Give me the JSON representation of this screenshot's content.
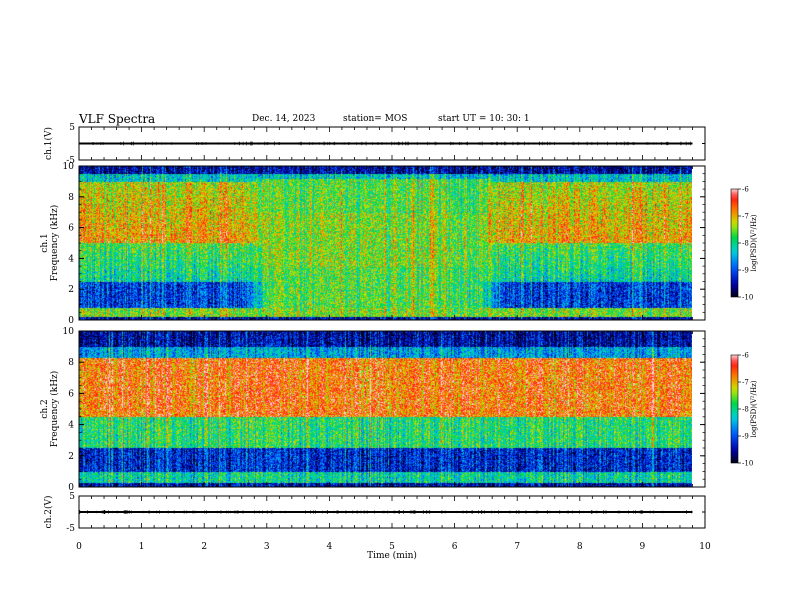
{
  "header": {
    "title": "VLF Spectra",
    "date": "Dec. 14, 2023",
    "station": "station= MOS",
    "start": "start  UT =   10: 30: 1"
  },
  "chart_data": [
    {
      "type": "line",
      "name": "ch1_waveform",
      "ylabel": "ch.1(V)",
      "ylim": [
        -5,
        5
      ],
      "yticks": [
        "5",
        "-5"
      ],
      "x": [
        0,
        9.8
      ],
      "values": [
        0,
        0
      ]
    },
    {
      "type": "heatmap",
      "name": "ch1_spectrogram",
      "ylabel_lines": [
        "ch.1",
        "Frequency (kHz)"
      ],
      "ylim": [
        0,
        10
      ],
      "yticks": [
        "0",
        "2",
        "4",
        "6",
        "8",
        "10"
      ],
      "xlim": [
        0,
        10
      ],
      "data_end_min": 9.8,
      "note_regions": {
        "broadband_enhancement_min": [
          2.6,
          6.8
        ]
      },
      "colorbar": {
        "label": "log(PSD)(V²/Hz)",
        "range": [
          -10,
          -6
        ],
        "ticks": [
          "-6",
          "-7",
          "-8",
          "-9",
          "-10"
        ]
      }
    },
    {
      "type": "heatmap",
      "name": "ch2_spectrogram",
      "ylabel_lines": [
        "ch.2",
        "Frequency (kHz)"
      ],
      "ylim": [
        0,
        10
      ],
      "yticks": [
        "0",
        "2",
        "4",
        "6",
        "8",
        "10"
      ],
      "xlim": [
        0,
        10
      ],
      "data_end_min": 9.8,
      "colorbar": {
        "label": "log(PSD)(V²/Hz)",
        "range": [
          -10,
          -6
        ],
        "ticks": [
          "-6",
          "-7",
          "-8",
          "-9",
          "-10"
        ]
      }
    },
    {
      "type": "line",
      "name": "ch2_waveform",
      "ylabel": "ch.2(V)",
      "ylim": [
        -5,
        5
      ],
      "yticks": [
        "5",
        "-5"
      ],
      "x": [
        0,
        9.8
      ],
      "values": [
        0,
        0
      ]
    }
  ],
  "xaxis": {
    "label": "Time  (min)",
    "ticks": [
      "0",
      "1",
      "2",
      "3",
      "4",
      "5",
      "6",
      "7",
      "8",
      "9",
      "10"
    ],
    "xlim": [
      0,
      10
    ]
  }
}
